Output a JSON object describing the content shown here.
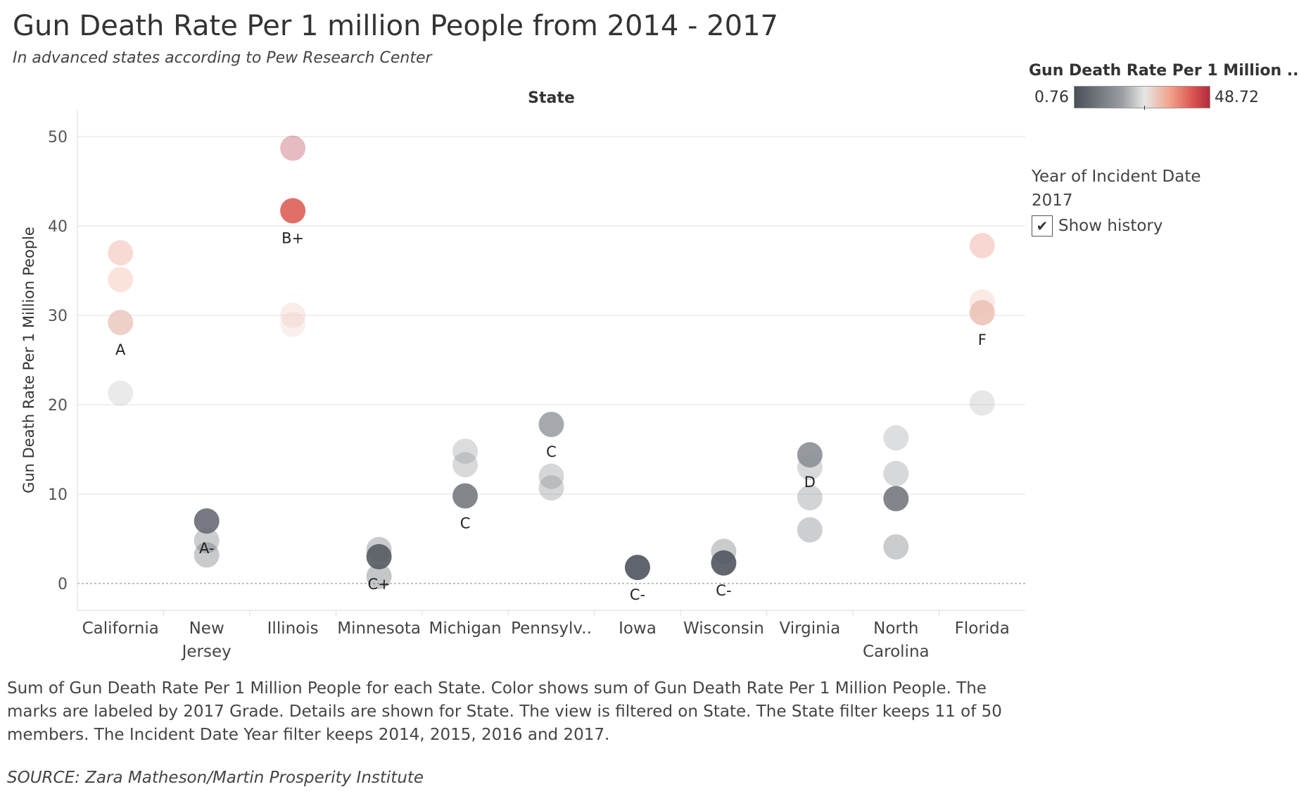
{
  "title": "Gun Death Rate Per 1 million People from 2014 - 2017",
  "subtitle": "In advanced states according to Pew Research Center",
  "legend": {
    "title": "Gun Death Rate Per 1 Million ..",
    "min_label": "0.76",
    "max_label": "48.72"
  },
  "filter": {
    "title": "Year of Incident Date",
    "value": "2017",
    "show_history_label": "Show history",
    "show_history_checked": true
  },
  "caption": "Sum of Gun Death Rate Per 1 Million People for each State.  Color shows sum of Gun Death Rate Per 1 Million People.  The marks are labeled by 2017 Grade.  Details are shown for State. The view is filtered on State. The State filter keeps 11 of 50 members. The Incident Date Year filter keeps 2014, 2015, 2016 and 2017.",
  "source": "SOURCE: Zara Matheson/Martin Prosperity Institute",
  "chart_data": {
    "type": "scatter",
    "column_header": "State",
    "ylabel": "Gun Death Rate Per 1 Million People",
    "ylim": [
      -3,
      53
    ],
    "yticks": [
      0,
      10,
      20,
      30,
      40,
      50
    ],
    "color_range": [
      0.76,
      48.72
    ],
    "grid": true,
    "categories": [
      "California",
      "New Jersey",
      "Illinois",
      "Minnesota",
      "Michigan",
      "Pennsylv..",
      "Iowa",
      "Wisconsin",
      "Virginia",
      "North Carolina",
      "Florida"
    ],
    "category_labels": [
      [
        "California"
      ],
      [
        "New",
        "Jersey"
      ],
      [
        "Illinois"
      ],
      [
        "Minnesota"
      ],
      [
        "Michigan"
      ],
      [
        "Pennsylv.."
      ],
      [
        "Iowa"
      ],
      [
        "Wisconsin"
      ],
      [
        "Virginia"
      ],
      [
        "North",
        "Carolina"
      ],
      [
        "Florida"
      ]
    ],
    "points": [
      {
        "state": "California",
        "values": [
          37.0,
          34.0,
          21.3,
          29.2
        ],
        "grade": "A"
      },
      {
        "state": "New Jersey",
        "values": [
          4.8,
          3.2,
          7.0
        ],
        "grade": "A-"
      },
      {
        "state": "Illinois",
        "values": [
          48.7,
          30.0,
          29.0,
          41.7
        ],
        "grade": "B+"
      },
      {
        "state": "Minnesota",
        "values": [
          3.8,
          0.8,
          3.0
        ],
        "grade": "C+"
      },
      {
        "state": "Michigan",
        "values": [
          14.8,
          13.3,
          9.8
        ],
        "grade": "C"
      },
      {
        "state": "Pennsylv..",
        "values": [
          10.7,
          12.0,
          17.8
        ],
        "grade": "C"
      },
      {
        "state": "Iowa",
        "values": [
          1.8
        ],
        "grade": "C-"
      },
      {
        "state": "Wisconsin",
        "values": [
          3.6,
          2.3
        ],
        "grade": "C-"
      },
      {
        "state": "Virginia",
        "values": [
          13.0,
          9.6,
          6.0,
          14.4
        ],
        "grade": "D"
      },
      {
        "state": "North Carolina",
        "values": [
          16.3,
          12.3,
          4.1,
          9.5
        ],
        "grade": ""
      },
      {
        "state": "Florida",
        "values": [
          37.8,
          31.5,
          20.2,
          30.3
        ],
        "grade": "F"
      }
    ]
  }
}
